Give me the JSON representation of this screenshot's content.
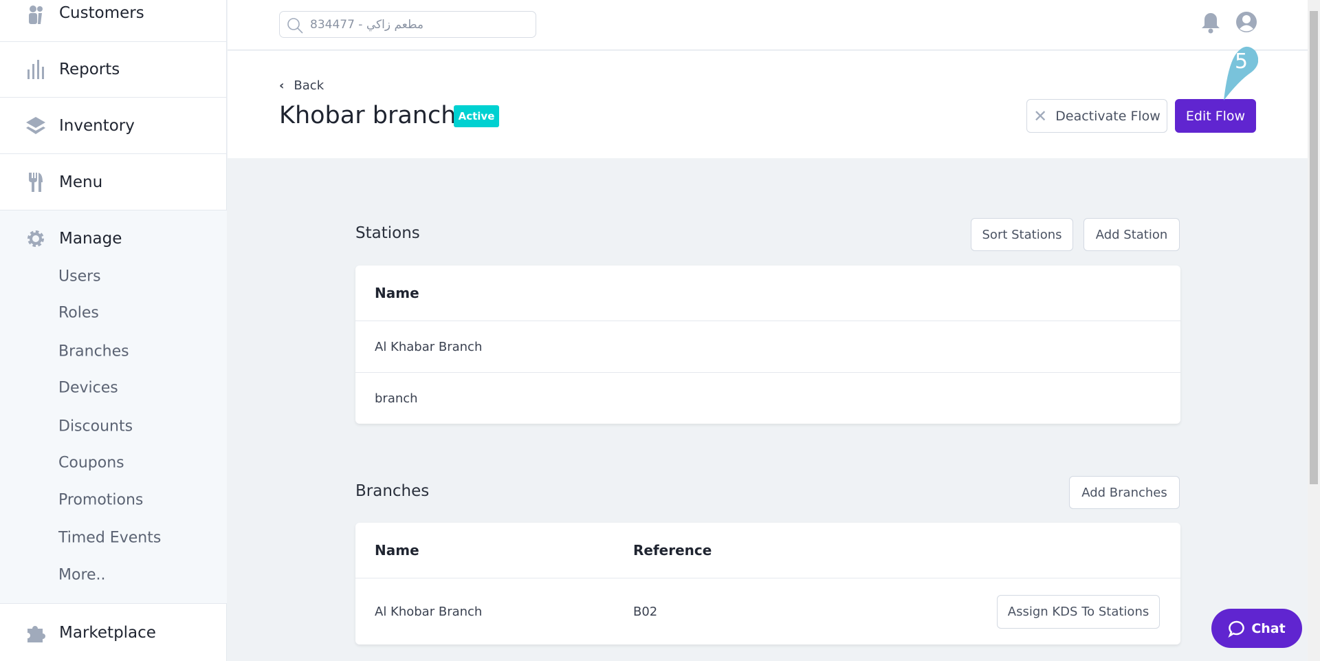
{
  "sidebar": {
    "items": [
      {
        "label": "Customers",
        "icon": "customers-icon"
      },
      {
        "label": "Reports",
        "icon": "bar-chart-icon"
      },
      {
        "label": "Inventory",
        "icon": "layers-icon"
      },
      {
        "label": "Menu",
        "icon": "utensils-icon"
      },
      {
        "label": "Manage",
        "icon": "gear-icon"
      },
      {
        "label": "Marketplace",
        "icon": "puzzle-icon"
      }
    ],
    "manage_items": [
      "Users",
      "Roles",
      "Branches",
      "Devices",
      "Discounts",
      "Coupons",
      "Promotions",
      "Timed Events",
      "More.."
    ]
  },
  "topbar": {
    "search_value": "مطعم زاكي - 834477"
  },
  "header": {
    "back": "Back",
    "title": "Khobar branch",
    "status": "Active",
    "deactivate": "Deactivate Flow",
    "edit": "Edit Flow",
    "step_marker": "5"
  },
  "stations": {
    "title": "Stations",
    "sort": "Sort Stations",
    "add": "Add Station",
    "columns": [
      "Name"
    ],
    "rows": [
      "Al Khabar Branch",
      "branch"
    ]
  },
  "branches": {
    "title": "Branches",
    "add": "Add Branches",
    "columns": [
      "Name",
      "Reference"
    ],
    "rows": [
      {
        "name": "Al Khobar Branch",
        "reference": "B02",
        "action": "Assign KDS To Stations"
      }
    ]
  },
  "chat": {
    "label": "Chat"
  },
  "colors": {
    "primary": "#6025d0",
    "active_badge": "#00d1d1",
    "marker": "#79c3db"
  }
}
